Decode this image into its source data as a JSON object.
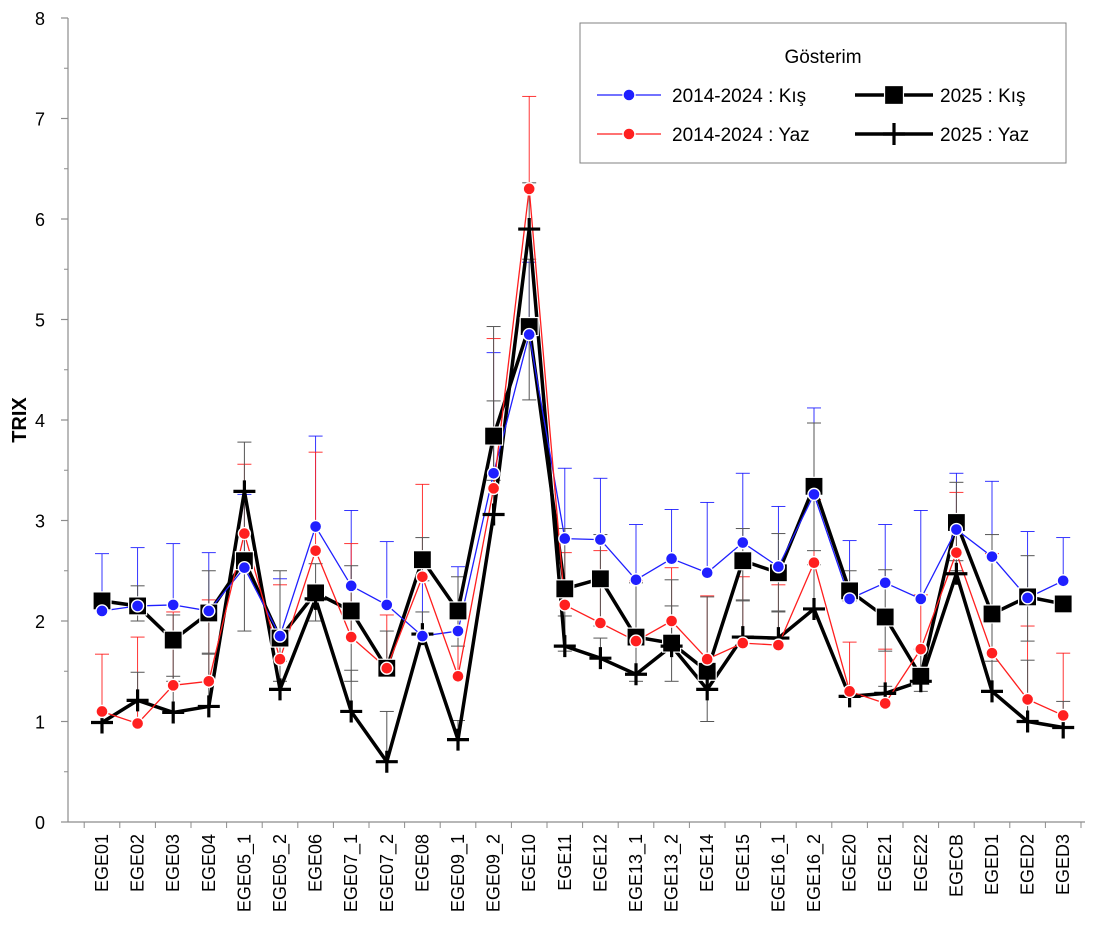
{
  "chart_data": {
    "type": "line",
    "ylabel": "TRIX",
    "xlabel": "",
    "ylim": [
      0,
      8
    ],
    "yticks": [
      0,
      1,
      2,
      3,
      4,
      5,
      6,
      7,
      8
    ],
    "grid": false,
    "legend": {
      "title": "Gösterim",
      "placement": "top-right"
    },
    "categories": [
      "EGE01",
      "EGE02",
      "EGE03",
      "EGE04",
      "EGE05_1",
      "EGE05_2",
      "EGE06",
      "EGE07_1",
      "EGE07_2",
      "EGE08",
      "EGE09_1",
      "EGE09_2",
      "EGE10",
      "EGE11",
      "EGE12",
      "EGE13_1",
      "EGE13_2",
      "EGE14",
      "EGE15",
      "EGE16_1",
      "EGE16_2",
      "EGE20",
      "EGE21",
      "EGE22",
      "EGECB",
      "EGED1",
      "EGED2",
      "EGED3"
    ],
    "series": [
      {
        "name": "2014-2024 : Kış",
        "color": "#1f1fff",
        "marker": "circle",
        "values": [
          2.1,
          2.15,
          2.16,
          2.1,
          2.53,
          1.85,
          2.94,
          2.35,
          2.16,
          1.85,
          1.9,
          3.47,
          4.85,
          2.82,
          2.81,
          2.41,
          2.62,
          2.48,
          2.78,
          2.54,
          3.26,
          2.22,
          2.38,
          2.22,
          2.91,
          2.64,
          2.23,
          2.4
        ],
        "err_high": [
          2.67,
          2.73,
          2.77,
          2.68,
          3.26,
          2.42,
          3.84,
          3.1,
          2.79,
          2.54,
          2.54,
          4.67,
          5.57,
          3.52,
          3.42,
          2.96,
          3.11,
          3.18,
          3.47,
          3.14,
          4.12,
          2.8,
          2.96,
          3.1,
          3.47,
          3.39,
          2.89,
          2.83
        ],
        "err_low": []
      },
      {
        "name": "2014-2024 : Yaz",
        "color": "#ff1f1f",
        "marker": "circle",
        "values": [
          1.1,
          0.98,
          1.36,
          1.4,
          2.87,
          1.62,
          2.7,
          1.84,
          1.53,
          2.44,
          1.45,
          3.32,
          6.3,
          2.16,
          1.98,
          1.8,
          2.0,
          1.62,
          1.78,
          1.76,
          2.58,
          1.3,
          1.18,
          1.72,
          2.68,
          1.68,
          1.22,
          1.06
        ],
        "err_high": [
          1.67,
          1.84,
          2.09,
          2.21,
          3.56,
          2.36,
          3.68,
          2.77,
          2.06,
          3.36,
          2.1,
          4.81,
          7.22,
          2.68,
          2.7,
          2.4,
          2.53,
          2.25,
          2.44,
          2.36,
          3.21,
          1.79,
          1.72,
          2.26,
          3.28,
          2.67,
          1.95,
          1.68
        ],
        "err_low": []
      },
      {
        "name": "2025 : Kış",
        "color": "#000000",
        "marker": "square",
        "values": [
          2.2,
          2.15,
          1.81,
          2.08,
          2.6,
          1.83,
          2.28,
          2.1,
          1.53,
          2.61,
          2.1,
          3.84,
          4.93,
          2.32,
          2.42,
          1.84,
          1.78,
          1.5,
          2.6,
          2.48,
          3.34,
          2.3,
          2.04,
          1.45,
          2.98,
          2.07,
          2.24,
          2.17
        ],
        "err_high": [
          2.24,
          2.35,
          2.06,
          2.5,
          3.28,
          2.5,
          2.57,
          2.55,
          1.9,
          2.83,
          2.44,
          4.93,
          5.6,
          2.92,
          2.86,
          2.38,
          2.41,
          2.24,
          2.92,
          2.87,
          3.97,
          2.5,
          2.51,
          1.72,
          3.38,
          2.86,
          2.65,
          2.17
        ],
        "err_low": [
          2.15,
          2.0,
          1.4,
          1.68,
          1.9,
          1.4,
          2.0,
          1.4,
          1.45,
          2.4,
          1.75,
          3.4,
          4.2,
          1.7,
          1.95,
          1.4,
          1.4,
          1.0,
          2.2,
          2.1,
          2.7,
          2.2,
          1.7,
          1.3,
          2.5,
          1.3,
          1.8,
          2.17
        ]
      },
      {
        "name": "2025 : Yaz",
        "color": "#000000",
        "marker": "plus",
        "values": [
          0.99,
          1.21,
          1.09,
          1.15,
          3.29,
          1.32,
          2.22,
          1.1,
          0.6,
          1.87,
          0.82,
          3.06,
          5.9,
          1.75,
          1.63,
          1.47,
          1.75,
          1.32,
          1.84,
          1.83,
          2.12,
          1.25,
          1.28,
          1.4,
          2.47,
          1.3,
          1.0,
          0.94
        ],
        "err_high": [
          0.99,
          1.49,
          1.45,
          1.67,
          3.78,
          1.6,
          2.22,
          1.51,
          1.1,
          2.09,
          1.01,
          4.19,
          6.36,
          2.05,
          1.83,
          1.77,
          2.15,
          1.42,
          2.21,
          2.09,
          2.56,
          1.25,
          1.35,
          1.4,
          2.6,
          1.6,
          1.61,
          1.2
        ],
        "err_low": []
      }
    ]
  }
}
